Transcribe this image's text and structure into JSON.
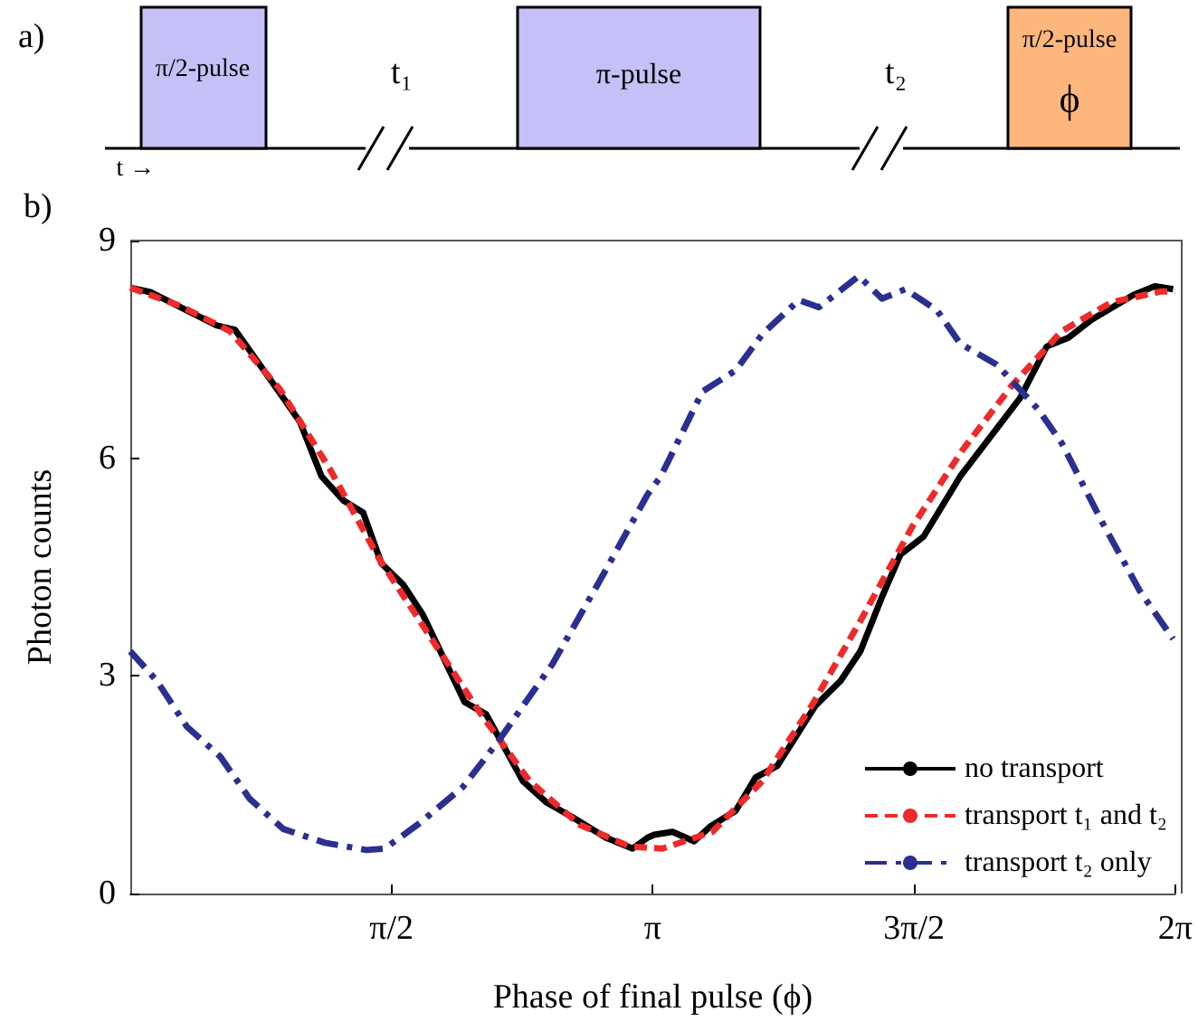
{
  "chart_data": [
    {
      "type": "other",
      "title": "a)",
      "annotations": [
        "π/2-pulse",
        "t₁",
        "π-pulse",
        "t₂",
        "π/2-pulse",
        "ϕ",
        "t →"
      ]
    },
    {
      "type": "line",
      "title": "b)",
      "xlabel": "Phase of final pulse (ϕ)",
      "ylabel": "Photon counts",
      "xlim": [
        0,
        6.2832
      ],
      "xticks": [
        {
          "value": 1.5708,
          "label": "π/2"
        },
        {
          "value": 3.1416,
          "label": "π"
        },
        {
          "value": 4.7124,
          "label": "3π/2"
        },
        {
          "value": 6.2832,
          "label": "2π"
        }
      ],
      "ylim": [
        0,
        9
      ],
      "yticks": [
        0,
        3,
        6,
        9
      ],
      "grid": false,
      "legend": "bottom right",
      "marker": "none",
      "series": [
        {
          "name": "no transport",
          "color": "#000000",
          "line_style": "solid",
          "x": [
            0,
            0.12,
            0.52,
            0.63,
            0.92,
            1.02,
            1.15,
            1.28,
            1.4,
            1.51,
            1.64,
            1.76,
            2.01,
            2.14,
            2.36,
            2.5,
            2.66,
            2.86,
            3.02,
            3.11,
            3.15,
            3.26,
            3.39,
            3.49,
            3.64,
            3.76,
            3.89,
            4.12,
            4.27,
            4.39,
            4.52,
            4.63,
            4.77,
            4.99,
            5.35,
            5.51,
            5.64,
            5.78,
            6.03,
            6.16,
            6.27
          ],
          "values": [
            8.35,
            8.29,
            7.83,
            7.77,
            6.83,
            6.5,
            5.75,
            5.42,
            5.25,
            4.55,
            4.26,
            3.84,
            2.64,
            2.47,
            1.55,
            1.26,
            1.05,
            0.77,
            0.62,
            0.77,
            0.81,
            0.85,
            0.72,
            0.93,
            1.14,
            1.6,
            1.76,
            2.59,
            2.93,
            3.34,
            4.09,
            4.67,
            4.92,
            5.75,
            6.83,
            7.54,
            7.66,
            7.91,
            8.25,
            8.37,
            8.33
          ]
        },
        {
          "name": "transport t₁ and t₂",
          "color": "#ee2a2a",
          "line_style": "dashed",
          "x": [
            0,
            0.3,
            0.6,
            0.9,
            1.2,
            1.5,
            1.8,
            2.1,
            2.4,
            2.7,
            3.0,
            3.2,
            3.5,
            3.8,
            4.1,
            4.4,
            4.7,
            5.0,
            5.3,
            5.6,
            5.9,
            6.2,
            6.28
          ],
          "values": [
            8.35,
            8.1,
            7.75,
            6.95,
            5.85,
            4.6,
            3.55,
            2.5,
            1.55,
            0.95,
            0.65,
            0.62,
            0.85,
            1.55,
            2.6,
            3.8,
            5.05,
            6.1,
            7.0,
            7.75,
            8.15,
            8.3,
            8.3
          ]
        },
        {
          "name": "transport t₂ only",
          "color": "#2b2f8f",
          "line_style": "dashdot",
          "x": [
            0,
            0.16,
            0.34,
            0.54,
            0.72,
            0.92,
            1.17,
            1.42,
            1.53,
            1.74,
            2.0,
            2.21,
            2.54,
            2.83,
            3.11,
            3.19,
            3.44,
            3.64,
            3.8,
            4.02,
            4.14,
            4.38,
            4.52,
            4.66,
            4.85,
            4.99,
            5.21,
            5.46,
            5.6,
            5.85,
            6.07,
            6.27
          ],
          "values": [
            3.34,
            2.93,
            2.3,
            1.89,
            1.3,
            0.89,
            0.7,
            0.6,
            0.62,
            0.97,
            1.47,
            2.09,
            3.17,
            4.34,
            5.5,
            5.75,
            6.92,
            7.21,
            7.71,
            8.18,
            8.08,
            8.51,
            8.2,
            8.33,
            8.04,
            7.58,
            7.29,
            6.67,
            6.21,
            5.09,
            4.17,
            3.51
          ]
        }
      ]
    }
  ]
}
